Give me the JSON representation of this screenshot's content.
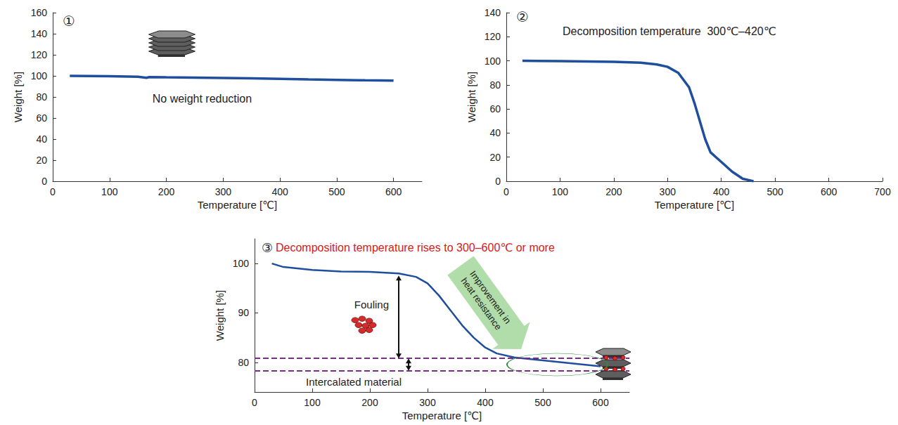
{
  "chart_data": [
    {
      "type": "line",
      "title": "①",
      "x_label": "Temperature [℃]",
      "y_label": "Weight [%]",
      "annotations": [
        "No weight reduction"
      ],
      "color": "#1f4e9c",
      "x": [
        30,
        100,
        150,
        165,
        170,
        200,
        250,
        300,
        350,
        400,
        450,
        500,
        550,
        600
      ],
      "values": [
        100,
        99.6,
        99.2,
        98.2,
        98.8,
        98.6,
        98.3,
        98,
        97.6,
        97.2,
        96.6,
        96.2,
        95.8,
        95.5
      ],
      "xlim": [
        0,
        650
      ],
      "ylim": [
        0,
        160
      ],
      "xticks": [
        0,
        100,
        200,
        300,
        400,
        500,
        600
      ],
      "yticks": [
        0,
        20,
        40,
        60,
        80,
        100,
        120,
        140,
        160
      ]
    },
    {
      "type": "line",
      "title": "②",
      "subtitle": "Decomposition temperature  300℃–420℃",
      "x_label": "Temperature [℃]",
      "y_label": "Weight [%]",
      "color": "#1f4e9c",
      "x": [
        30,
        100,
        200,
        250,
        280,
        300,
        320,
        340,
        350,
        360,
        370,
        380,
        390,
        400,
        420,
        440,
        460
      ],
      "values": [
        100,
        99.8,
        99.2,
        98.5,
        97,
        95,
        90,
        78,
        65,
        50,
        35,
        24,
        20,
        16,
        8,
        2,
        0
      ],
      "xlim": [
        0,
        700
      ],
      "ylim": [
        0,
        140
      ],
      "xticks": [
        0,
        100,
        200,
        300,
        400,
        500,
        600,
        700
      ],
      "yticks": [
        0,
        20,
        40,
        60,
        80,
        100,
        120,
        140
      ]
    },
    {
      "type": "line",
      "title": "③",
      "subtitle": "Decomposition temperature rises to 300–600℃ or more",
      "x_label": "Temperature [℃]",
      "y_label": "Weight [%]",
      "annotations": [
        "Fouling",
        "Intercalated material",
        "Improvement in heat resistance"
      ],
      "color": "#1f4e9c",
      "x": [
        30,
        50,
        100,
        150,
        200,
        250,
        280,
        300,
        320,
        340,
        360,
        380,
        400,
        420,
        450,
        500,
        550,
        600
      ],
      "values": [
        100,
        99.3,
        98.7,
        98.4,
        98.3,
        98,
        97.3,
        96,
        93.5,
        90.5,
        87.5,
        85,
        83,
        81.8,
        81,
        80.4,
        79.8,
        79.2
      ],
      "reference_lines": [
        80.8,
        78.3
      ],
      "xlim": [
        0,
        650
      ],
      "ylim": [
        74,
        105
      ],
      "xticks": [
        0,
        100,
        200,
        300,
        400,
        500,
        600
      ],
      "yticks": [
        80,
        90,
        100
      ]
    }
  ]
}
